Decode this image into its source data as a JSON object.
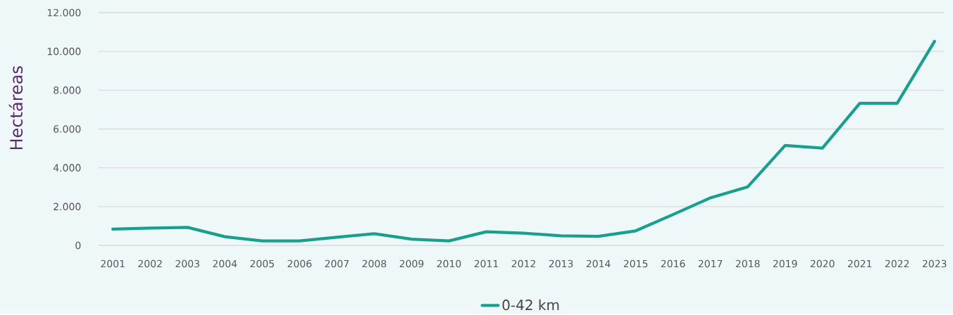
{
  "chart_data": {
    "type": "line",
    "ylabel": "Hectáreas",
    "categories": [
      "2001",
      "2002",
      "2003",
      "2004",
      "2005",
      "2006",
      "2007",
      "2008",
      "2009",
      "2010",
      "2011",
      "2012",
      "2013",
      "2014",
      "2015",
      "2016",
      "2017",
      "2018",
      "2019",
      "2020",
      "2021",
      "2022",
      "2023"
    ],
    "series": [
      {
        "name": "0-42 km",
        "color": "#1a9e8f",
        "values": [
          840,
          890,
          930,
          450,
          230,
          230,
          420,
          600,
          320,
          230,
          700,
          630,
          490,
          470,
          750,
          1590,
          2450,
          3020,
          5150,
          5020,
          7330,
          7330,
          10520
        ]
      }
    ],
    "ylim": [
      0,
      12000
    ],
    "yticks": [
      {
        "value": 0,
        "label": "0"
      },
      {
        "value": 2000,
        "label": "2.000"
      },
      {
        "value": 4000,
        "label": "4.000"
      },
      {
        "value": 6000,
        "label": "6.000"
      },
      {
        "value": 8000,
        "label": "8.000"
      },
      {
        "value": 10000,
        "label": "10.000"
      },
      {
        "value": 12000,
        "label": "12.000"
      }
    ],
    "grid": "y",
    "legend": "bottom"
  }
}
